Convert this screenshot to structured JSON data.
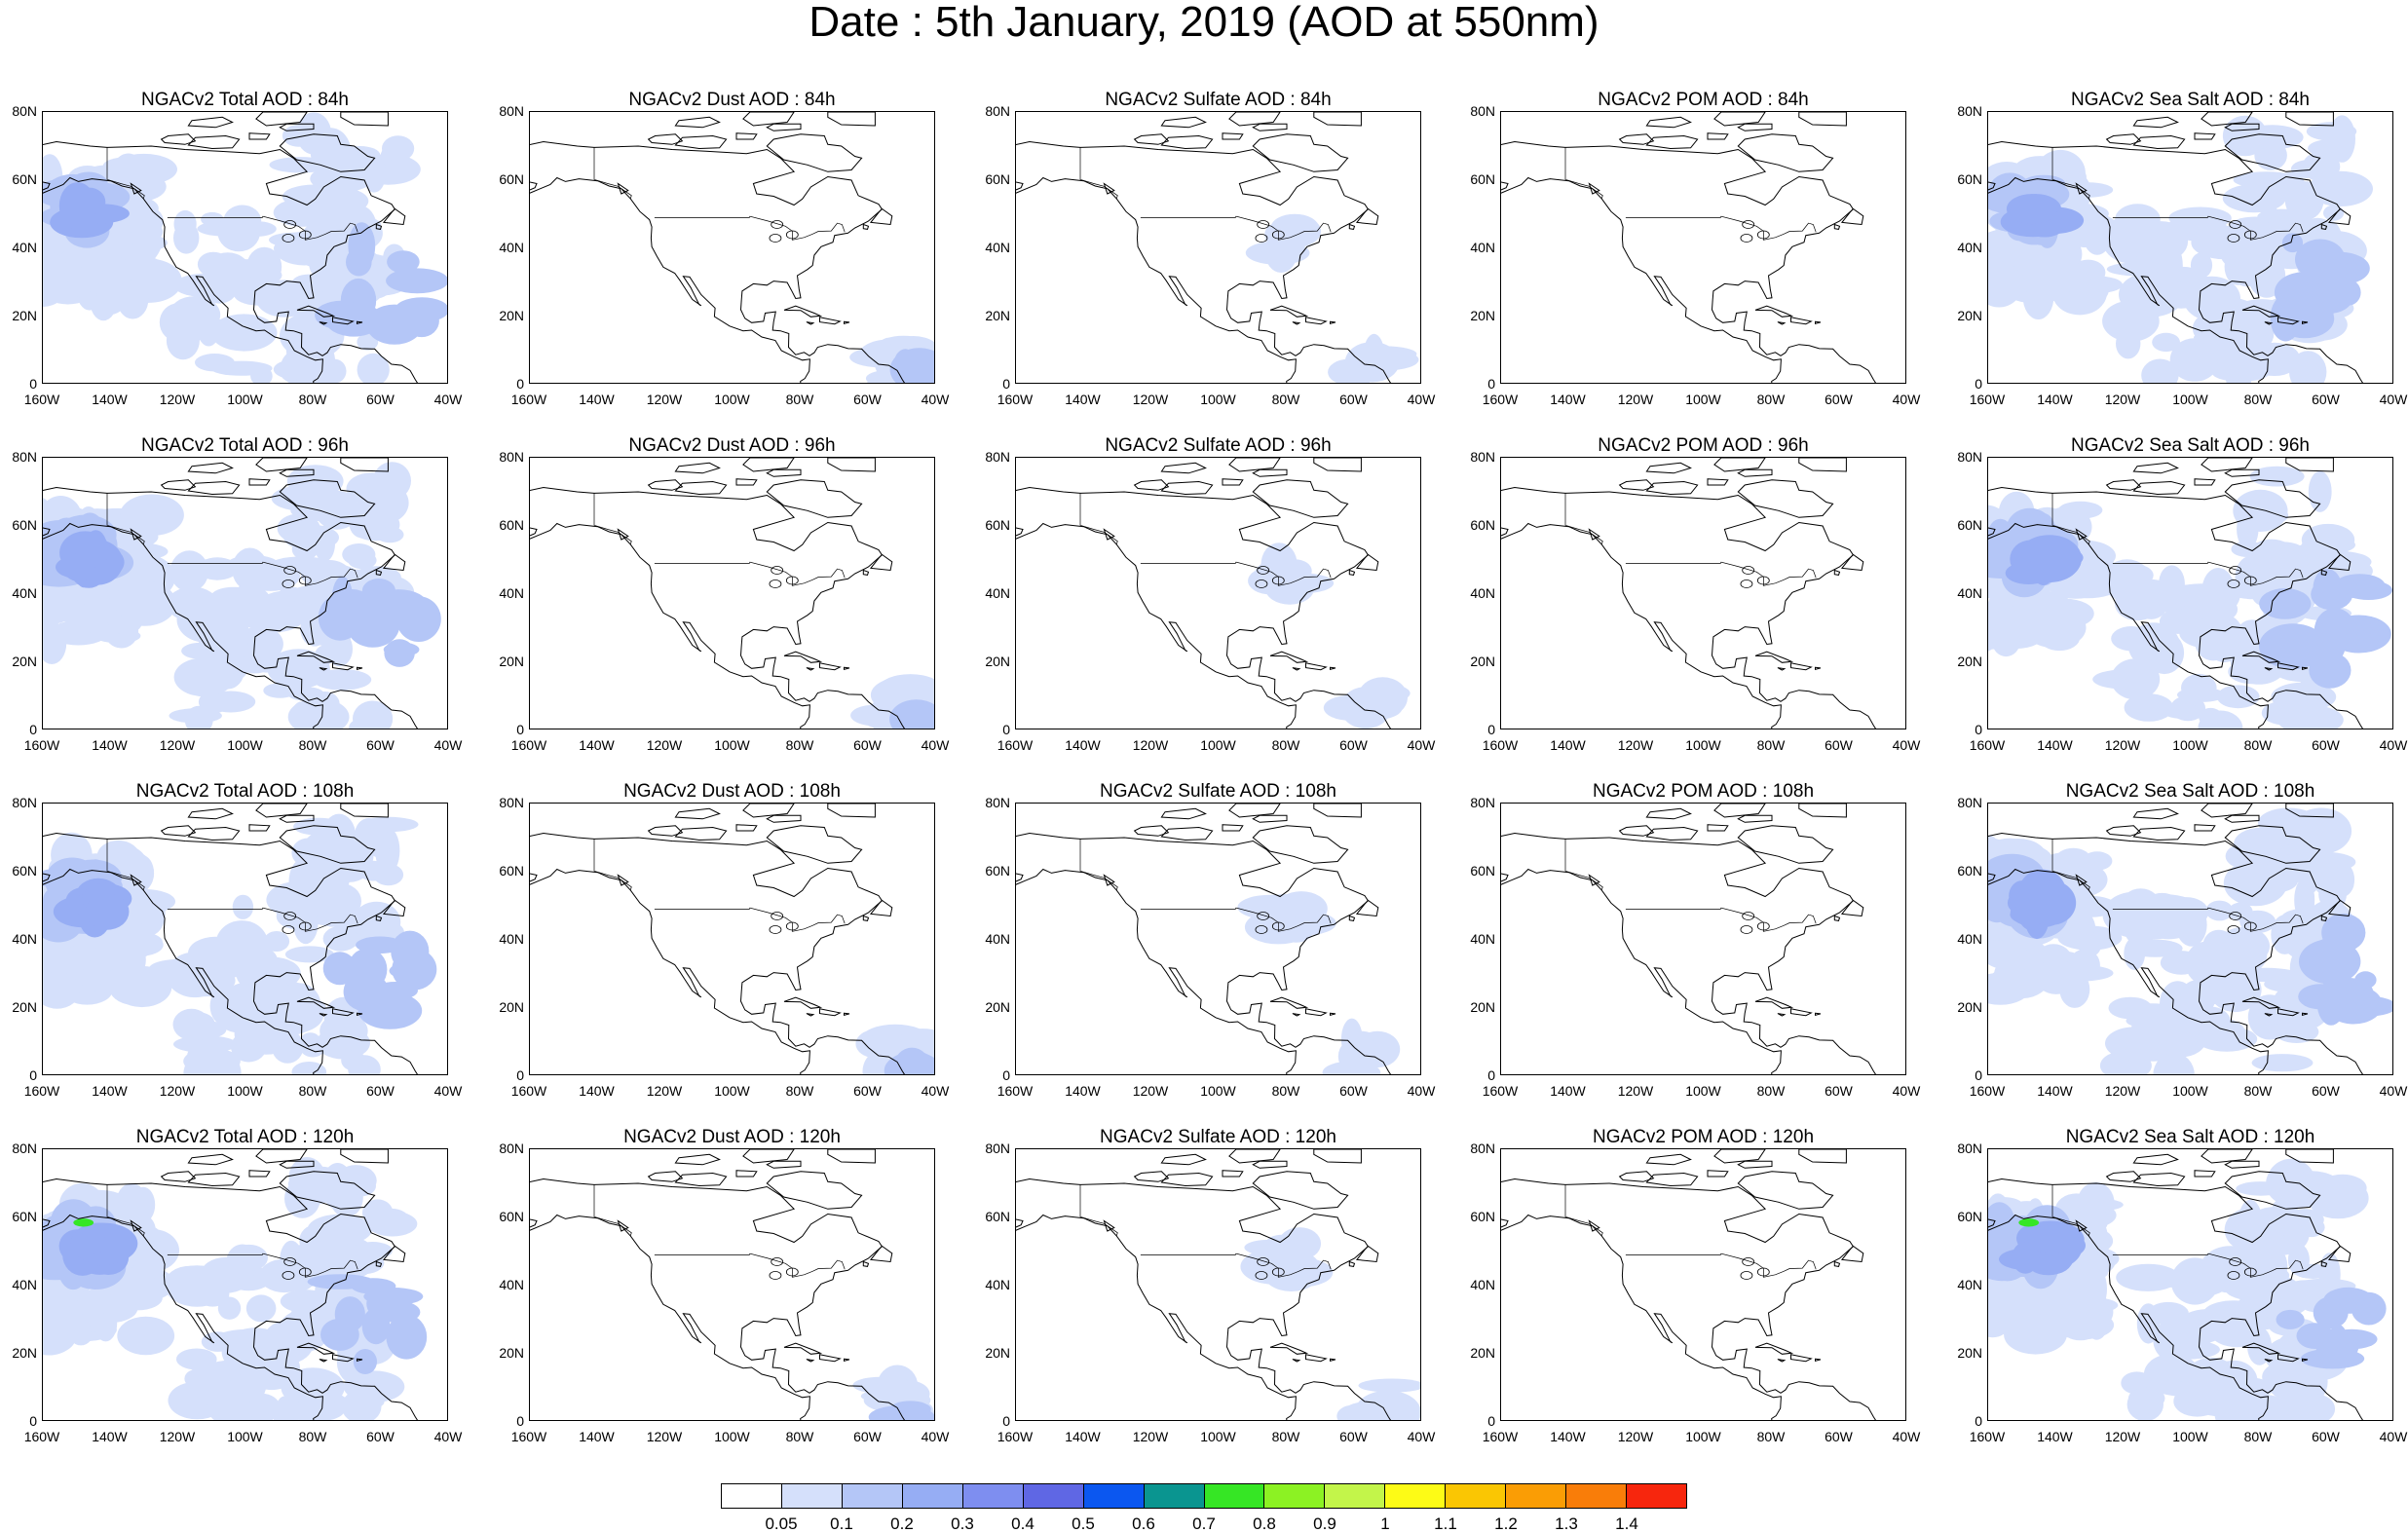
{
  "title": "Date : 5th January, 2019 (AOD at 550nm)",
  "axes": {
    "y_ticks": [
      "80N",
      "60N",
      "40N",
      "20N",
      "0"
    ],
    "x_ticks": [
      "160W",
      "140W",
      "120W",
      "100W",
      "80W",
      "60W",
      "40W"
    ]
  },
  "panels": [
    {
      "title": "NGACv2 Total AOD : 84h",
      "species": "total"
    },
    {
      "title": "NGACv2 Dust AOD : 84h",
      "species": "dust"
    },
    {
      "title": "NGACv2 Sulfate AOD : 84h",
      "species": "sulfate"
    },
    {
      "title": "NGACv2 POM AOD : 84h",
      "species": "pom"
    },
    {
      "title": "NGACv2 Sea Salt AOD : 84h",
      "species": "seasalt"
    },
    {
      "title": "NGACv2 Total AOD : 96h",
      "species": "total"
    },
    {
      "title": "NGACv2 Dust AOD : 96h",
      "species": "dust"
    },
    {
      "title": "NGACv2 Sulfate AOD : 96h",
      "species": "sulfate"
    },
    {
      "title": "NGACv2 POM AOD : 96h",
      "species": "pom"
    },
    {
      "title": "NGACv2 Sea Salt AOD : 96h",
      "species": "seasalt"
    },
    {
      "title": "NGACv2 Total AOD : 108h",
      "species": "total"
    },
    {
      "title": "NGACv2 Dust AOD : 108h",
      "species": "dust"
    },
    {
      "title": "NGACv2 Sulfate AOD : 108h",
      "species": "sulfate"
    },
    {
      "title": "NGACv2 POM AOD : 108h",
      "species": "pom"
    },
    {
      "title": "NGACv2 Sea Salt AOD : 108h",
      "species": "seasalt"
    },
    {
      "title": "NGACv2 Total AOD : 120h",
      "species": "total"
    },
    {
      "title": "NGACv2 Dust AOD : 120h",
      "species": "dust"
    },
    {
      "title": "NGACv2 Sulfate AOD : 120h",
      "species": "sulfate"
    },
    {
      "title": "NGACv2 POM AOD : 120h",
      "species": "pom"
    },
    {
      "title": "NGACv2 Sea Salt  AOD : 120h",
      "species": "seasalt"
    }
  ],
  "colorbar": {
    "labels": [
      "0.05",
      "0.1",
      "0.2",
      "0.3",
      "0.4",
      "0.5",
      "0.6",
      "0.7",
      "0.8",
      "0.9",
      "1",
      "1.1",
      "1.2",
      "1.3",
      "1.4"
    ],
    "colors": [
      "#ffffff",
      "#d5e0fb",
      "#b4c6f7",
      "#96adf4",
      "#7e8ef0",
      "#5f67e4",
      "#0b57f0",
      "#0a9590",
      "#36e625",
      "#8cf223",
      "#c3f54a",
      "#fdfb16",
      "#fac603",
      "#fa9d05",
      "#f97d09",
      "#f7260d"
    ]
  },
  "colors": {
    "aod_low": "#d5e0fb",
    "aod_mid": "#b4c6f7",
    "aod_high": "#96adf4",
    "aod_peak": "#36e625",
    "coast": "#000000"
  }
}
